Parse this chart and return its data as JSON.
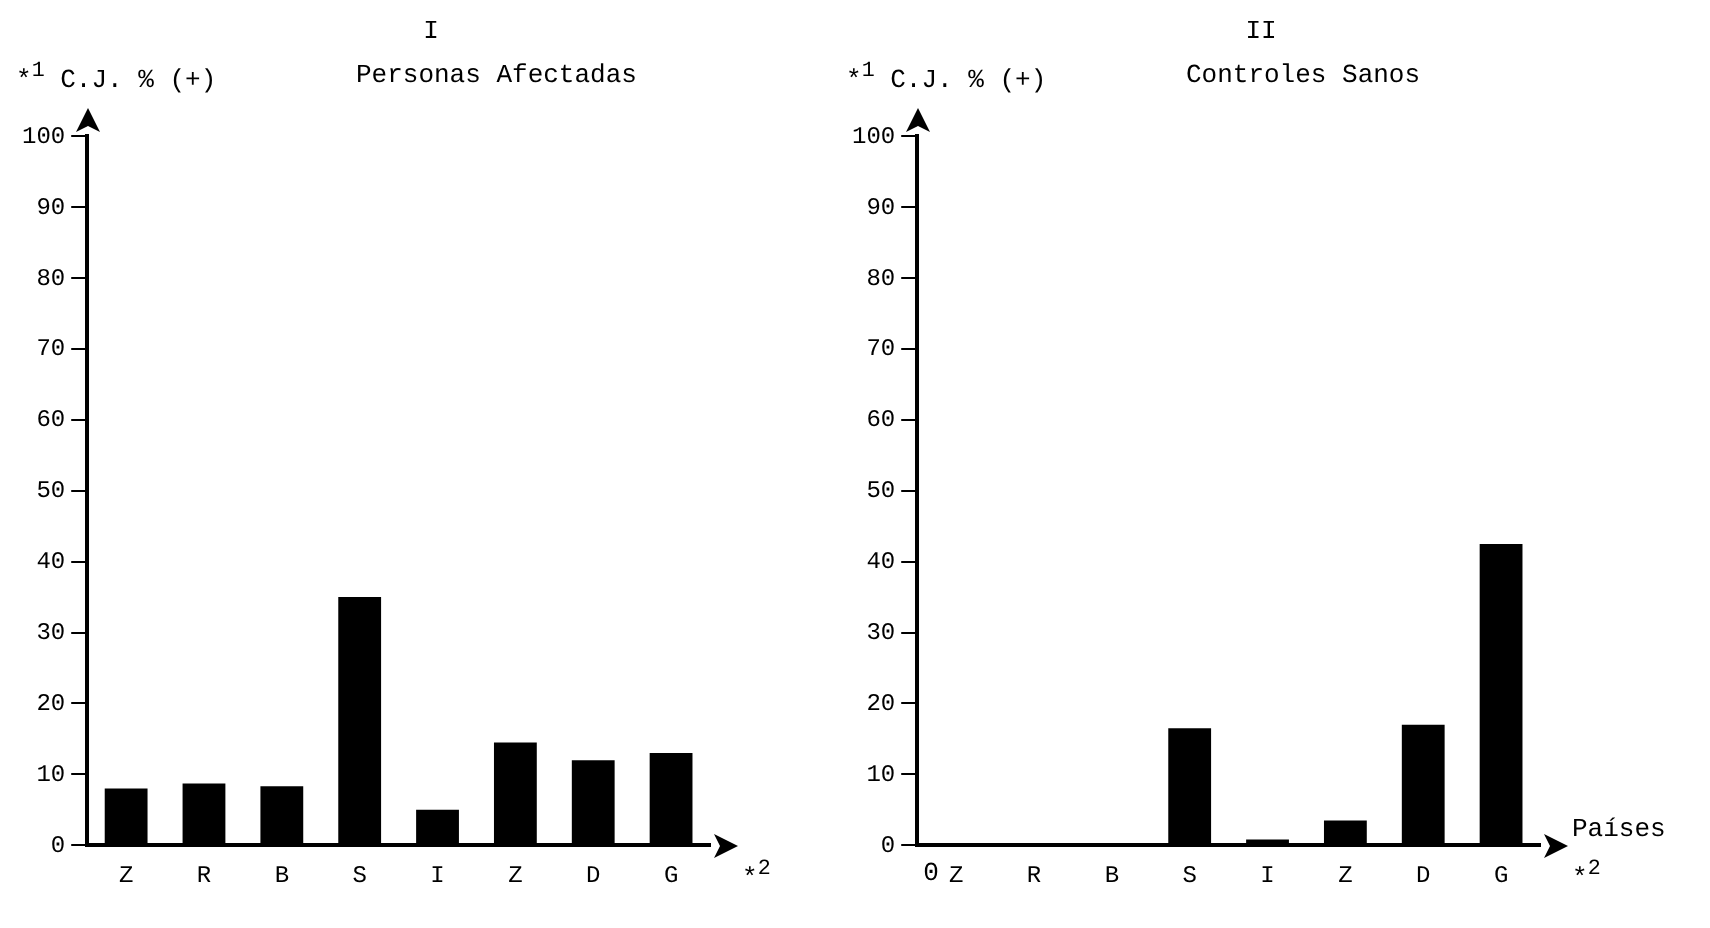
{
  "chart_data": [
    {
      "type": "bar",
      "title": "I",
      "subtitle": "Personas Afectadas",
      "ylabel": "*$^{1}$ C.J. % (+)",
      "xlabel": "*$^{2}$",
      "categories": [
        "Z",
        "R",
        "B",
        "S",
        "I",
        "Z",
        "D",
        "G"
      ],
      "values": [
        8,
        8.7,
        8.3,
        35,
        5,
        14.5,
        12,
        13
      ],
      "color": "#000000",
      "ylim": [
        0,
        100
      ],
      "yticks": [
        0,
        10,
        20,
        30,
        40,
        50,
        60,
        70,
        80,
        90,
        100
      ]
    },
    {
      "type": "bar",
      "title": "II",
      "subtitle": "Controles Sanos",
      "ylabel": "*$^{1}$ C.J. % (+)",
      "xlabel": "Países",
      "annotations": [
        "0",
        "*$^{2}$"
      ],
      "categories": [
        "Z",
        "R",
        "B",
        "S",
        "I",
        "Z",
        "D",
        "G"
      ],
      "values": [
        0.3,
        0.2,
        0,
        16.5,
        0.8,
        3.5,
        17,
        42.5
      ],
      "color": "#000000",
      "ylim": [
        0,
        100
      ],
      "yticks": [
        0,
        10,
        20,
        30,
        40,
        50,
        60,
        70,
        80,
        90,
        100
      ]
    }
  ]
}
